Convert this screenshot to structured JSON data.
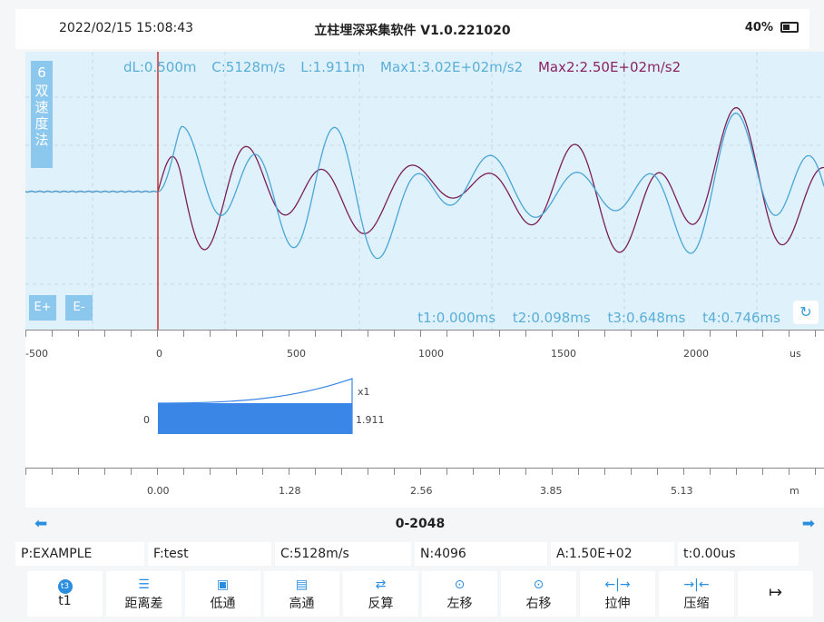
{
  "statusbar": {
    "datetime": "2022/02/15 15:08:43",
    "title": "立柱埋深采集软件 V1.0.221020",
    "battery": "40%"
  },
  "wave": {
    "mode_number": "6",
    "mode_label": "双速度法",
    "params": {
      "dl": "dL:0.500m",
      "c": "C:5128m/s",
      "l": "L:1.911m",
      "max1": "Max1:3.02E+02m/s2",
      "max2": "Max2:2.50E+02m/s2"
    },
    "times": {
      "t1": "t1:0.000ms",
      "t2": "t2:0.098ms",
      "t3": "t3:0.648ms",
      "t4": "t4:0.746ms"
    },
    "e_plus": "E+",
    "e_minus": "E-",
    "colors": {
      "trace1": "#4aa6d6",
      "trace2": "#7b1f57",
      "marker": "#d03030"
    }
  },
  "axis1": {
    "labels": [
      "-500",
      "0",
      "500",
      "1000",
      "1500",
      "2000",
      "us"
    ]
  },
  "bargraph": {
    "zero_label": "0",
    "gain": "x1",
    "value": "1.911",
    "bar_color": "#3a86e6"
  },
  "axis2": {
    "labels": [
      "0.00",
      "1.28",
      "2.56",
      "3.85",
      "5.13",
      "m"
    ]
  },
  "range": "0-2048",
  "info": {
    "p": "P:EXAMPLE",
    "f": "F:test",
    "c": "C:5128m/s",
    "n": "N:4096",
    "a": "A:1.50E+02",
    "t": "t:0.00us"
  },
  "toolbar": [
    {
      "label": "t1",
      "icon": "t3"
    },
    {
      "label": "距离差",
      "icon": "distance-icon"
    },
    {
      "label": "低通",
      "icon": "lowpass-icon"
    },
    {
      "label": "高通",
      "icon": "highpass-icon"
    },
    {
      "label": "反算",
      "icon": "shuffle-icon"
    },
    {
      "label": "左移",
      "icon": "shift-left-icon"
    },
    {
      "label": "右移",
      "icon": "shift-right-icon"
    },
    {
      "label": "拉伸",
      "icon": "stretch-icon"
    },
    {
      "label": "压缩",
      "icon": "compress-icon"
    },
    {
      "label": "",
      "icon": "exit-icon"
    }
  ]
}
